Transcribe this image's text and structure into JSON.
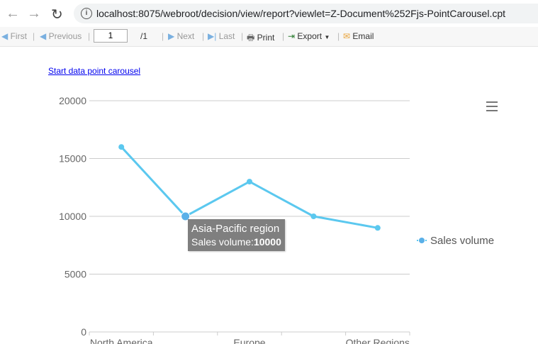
{
  "browser": {
    "url": "localhost:8075/webroot/decision/view/report?viewlet=Z-Document%252Fjs-PointCarousel.cpt"
  },
  "toolbar": {
    "first": "First",
    "previous": "Previous",
    "page": "1",
    "total": "/1",
    "next": "Next",
    "last": "Last",
    "print": "Print",
    "export": "Export",
    "email": "Email"
  },
  "link": "Start data point carousel",
  "tooltip": {
    "category": "Asia-Pacific region",
    "label": "Sales volume:",
    "value": "10000"
  },
  "chart_data": {
    "type": "line",
    "categories": [
      "North America",
      "Asia-Pacific region",
      "Europe",
      "",
      "Other Regions"
    ],
    "visible_tick_labels": [
      "North America",
      "Europe",
      "Other Regions"
    ],
    "series": [
      {
        "name": "Sales volume",
        "values": [
          16000,
          10000,
          13000,
          10000,
          9000
        ],
        "color": "#5bc8ef"
      }
    ],
    "yticks": [
      0,
      5000,
      10000,
      15000,
      20000
    ],
    "ylim": [
      0,
      20000
    ],
    "grid": true,
    "legend": "right",
    "highlighted_index": 1
  }
}
